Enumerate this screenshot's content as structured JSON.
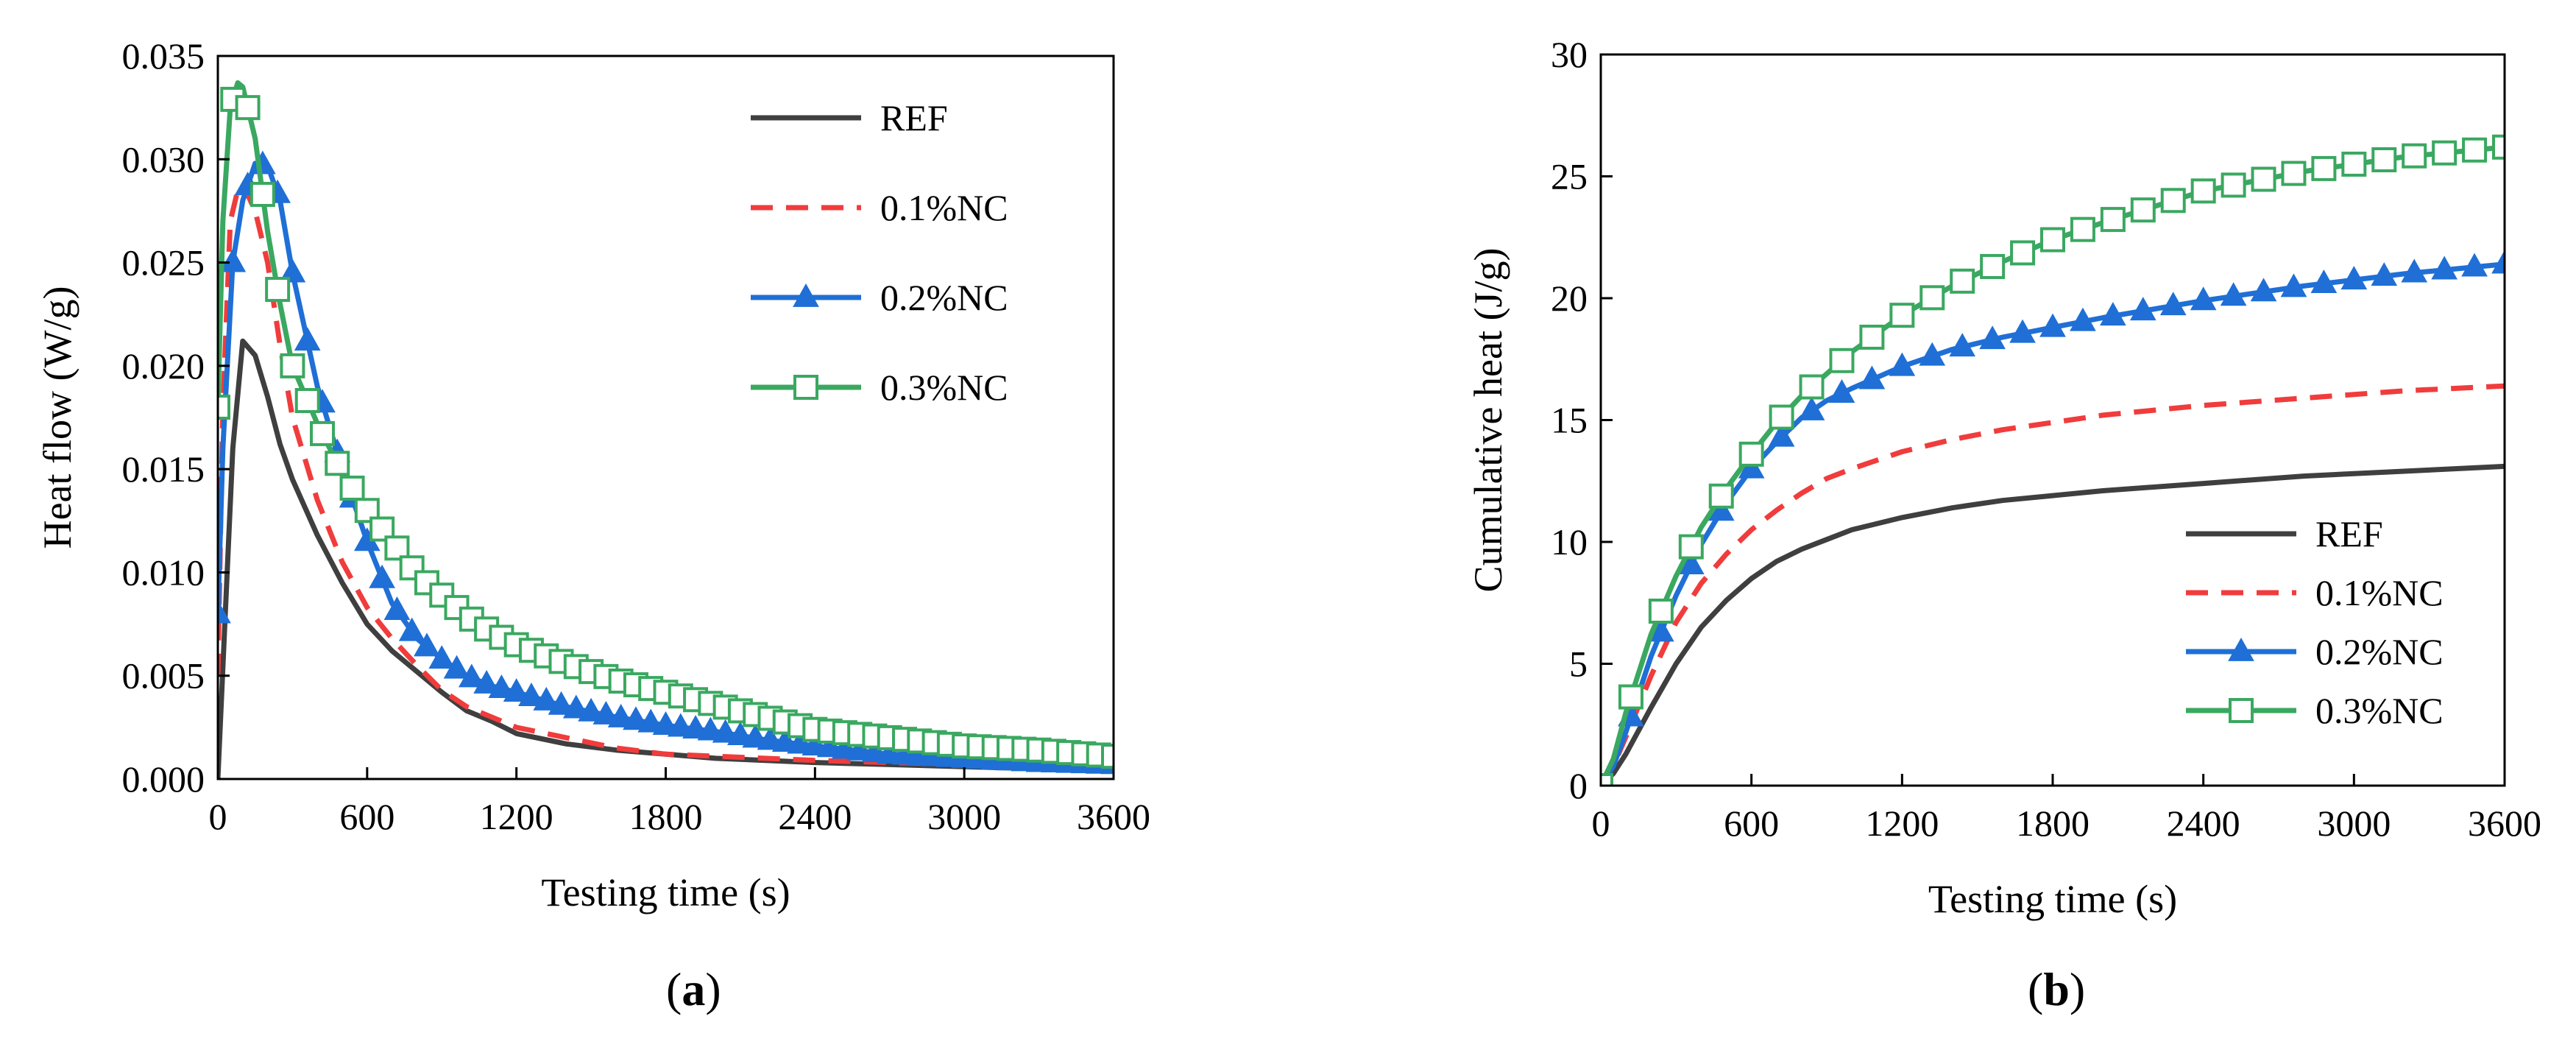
{
  "figure": {
    "background": "#ffffff"
  },
  "series_styles": [
    {
      "name": "REF",
      "color": "#3f3f3f",
      "dash": "solid",
      "marker": "none"
    },
    {
      "name": "0.1%NC",
      "color": "#f03c3c",
      "dash": "dashed",
      "marker": "none"
    },
    {
      "name": "0.2%NC",
      "color": "#1f6fd6",
      "dash": "solid",
      "marker": "triangle"
    },
    {
      "name": "0.3%NC",
      "color": "#3aa860",
      "dash": "solid",
      "marker": "open-square"
    }
  ],
  "chart_data": [
    {
      "panel_label": "(a)",
      "panel_letter": "a",
      "type": "line",
      "title": "",
      "xlabel": "Testing time (s)",
      "ylabel": "Heat flow (W/g)",
      "xlim": [
        0,
        3600
      ],
      "ylim": [
        0,
        0.035
      ],
      "xticks": [
        0,
        600,
        1200,
        1800,
        2400,
        3000,
        3600
      ],
      "xtick_labels": [
        "0",
        "600",
        "1200",
        "1800",
        "2400",
        "3000",
        "3600"
      ],
      "yticks": [
        0,
        0.005,
        0.01,
        0.015,
        0.02,
        0.025,
        0.03,
        0.035
      ],
      "ytick_labels": [
        "0.000",
        "0.005",
        "0.010",
        "0.015",
        "0.020",
        "0.025",
        "0.030",
        "0.035"
      ],
      "grid": false,
      "legend_position": "top-right",
      "series": [
        {
          "name": "REF",
          "x": [
            0,
            30,
            60,
            100,
            150,
            200,
            250,
            300,
            400,
            500,
            600,
            700,
            800,
            900,
            1000,
            1100,
            1200,
            1400,
            1600,
            1800,
            2000,
            2200,
            2400,
            2700,
            3000,
            3300,
            3600
          ],
          "y": [
            0,
            0.008,
            0.016,
            0.0212,
            0.0205,
            0.0185,
            0.0162,
            0.0145,
            0.0118,
            0.0095,
            0.0075,
            0.0062,
            0.0052,
            0.0042,
            0.0033,
            0.0028,
            0.0022,
            0.0017,
            0.0014,
            0.0012,
            0.001,
            0.0009,
            0.0008,
            0.0007,
            0.0006,
            0.0005,
            0.0005
          ]
        },
        {
          "name": "0.1%NC",
          "x": [
            0,
            20,
            50,
            80,
            100,
            150,
            200,
            250,
            300,
            400,
            500,
            600,
            700,
            800,
            900,
            1000,
            1100,
            1200,
            1400,
            1600,
            1800,
            2000,
            2400,
            2700,
            3000,
            3300,
            3600
          ],
          "y": [
            0.005,
            0.018,
            0.027,
            0.0285,
            0.0288,
            0.0275,
            0.025,
            0.021,
            0.0175,
            0.0135,
            0.0105,
            0.0083,
            0.0068,
            0.0055,
            0.0043,
            0.0035,
            0.003,
            0.0025,
            0.002,
            0.0015,
            0.0012,
            0.0011,
            0.0009,
            0.0008,
            0.0007,
            0.0006,
            0.0006
          ]
        },
        {
          "name": "0.2%NC",
          "x": [
            0,
            20,
            60,
            100,
            150,
            200,
            250,
            300,
            400,
            500,
            600,
            700,
            800,
            900,
            1000,
            1100,
            1200,
            1400,
            1600,
            1800,
            2000,
            2200,
            2400,
            2700,
            3000,
            3300,
            3600
          ],
          "y": [
            0.008,
            0.016,
            0.025,
            0.028,
            0.0298,
            0.0297,
            0.028,
            0.0245,
            0.019,
            0.015,
            0.0115,
            0.0085,
            0.0068,
            0.0058,
            0.005,
            0.0045,
            0.0042,
            0.0035,
            0.003,
            0.0026,
            0.0023,
            0.0019,
            0.0016,
            0.0012,
            0.001,
            0.0008,
            0.0007
          ]
        },
        {
          "name": "0.3%NC",
          "x": [
            0,
            20,
            50,
            80,
            100,
            150,
            200,
            250,
            300,
            400,
            500,
            600,
            700,
            800,
            900,
            1000,
            1100,
            1200,
            1400,
            1600,
            1800,
            2000,
            2200,
            2400,
            2700,
            3000,
            3300,
            3600
          ],
          "y": [
            0.018,
            0.027,
            0.0325,
            0.0337,
            0.0335,
            0.031,
            0.0265,
            0.023,
            0.02,
            0.0172,
            0.0148,
            0.013,
            0.0115,
            0.0099,
            0.0089,
            0.0079,
            0.0071,
            0.0065,
            0.0056,
            0.0048,
            0.0042,
            0.0036,
            0.003,
            0.0024,
            0.002,
            0.0016,
            0.0014,
            0.0011
          ]
        }
      ]
    },
    {
      "panel_label": "(b)",
      "panel_letter": "b",
      "type": "line",
      "title": "",
      "xlabel": "Testing time (s)",
      "ylabel": "Cumulative heat (J/g)",
      "xlim": [
        0,
        3600
      ],
      "ylim": [
        0,
        30
      ],
      "xticks": [
        0,
        600,
        1200,
        1800,
        2400,
        3000,
        3600
      ],
      "xtick_labels": [
        "0",
        "600",
        "1200",
        "1800",
        "2400",
        "3000",
        "3600"
      ],
      "yticks": [
        0,
        5,
        10,
        15,
        20,
        25,
        30
      ],
      "ytick_labels": [
        "0",
        "5",
        "10",
        "15",
        "20",
        "25",
        "30"
      ],
      "grid": false,
      "legend_position": "bottom-right",
      "series": [
        {
          "name": "REF",
          "x": [
            0,
            50,
            100,
            200,
            300,
            400,
            500,
            600,
            700,
            800,
            900,
            1000,
            1200,
            1400,
            1600,
            1800,
            2000,
            2400,
            2800,
            3200,
            3600
          ],
          "y": [
            0,
            0.5,
            1.3,
            3.2,
            5.0,
            6.5,
            7.6,
            8.5,
            9.2,
            9.7,
            10.1,
            10.5,
            11.0,
            11.4,
            11.7,
            11.9,
            12.1,
            12.4,
            12.7,
            12.9,
            13.1
          ]
        },
        {
          "name": "0.1%NC",
          "x": [
            0,
            50,
            100,
            200,
            300,
            400,
            500,
            600,
            700,
            800,
            900,
            1000,
            1200,
            1400,
            1600,
            1800,
            2000,
            2400,
            2800,
            3200,
            3600
          ],
          "y": [
            0,
            0.8,
            2.0,
            4.5,
            6.7,
            8.3,
            9.5,
            10.5,
            11.3,
            12.0,
            12.6,
            13.0,
            13.7,
            14.2,
            14.6,
            14.9,
            15.2,
            15.6,
            15.9,
            16.2,
            16.4
          ]
        },
        {
          "name": "0.2%NC",
          "x": [
            0,
            50,
            100,
            200,
            300,
            400,
            500,
            600,
            700,
            800,
            900,
            1000,
            1200,
            1400,
            1600,
            1800,
            2000,
            2400,
            2800,
            3200,
            3600
          ],
          "y": [
            0,
            0.8,
            2.2,
            5.3,
            7.8,
            9.9,
            11.6,
            13.0,
            14.1,
            15.1,
            15.8,
            16.3,
            17.2,
            17.9,
            18.4,
            18.8,
            19.2,
            19.9,
            20.5,
            21.0,
            21.4
          ]
        },
        {
          "name": "0.3%NC",
          "x": [
            0,
            50,
            100,
            200,
            300,
            400,
            500,
            600,
            700,
            800,
            900,
            1000,
            1200,
            1400,
            1600,
            1800,
            2000,
            2400,
            2800,
            3200,
            3600
          ],
          "y": [
            0,
            1.1,
            3.0,
            6.2,
            8.6,
            10.6,
            12.2,
            13.6,
            14.9,
            16.0,
            16.9,
            17.8,
            19.3,
            20.5,
            21.5,
            22.4,
            23.1,
            24.4,
            25.2,
            25.8,
            26.2
          ]
        }
      ]
    }
  ]
}
